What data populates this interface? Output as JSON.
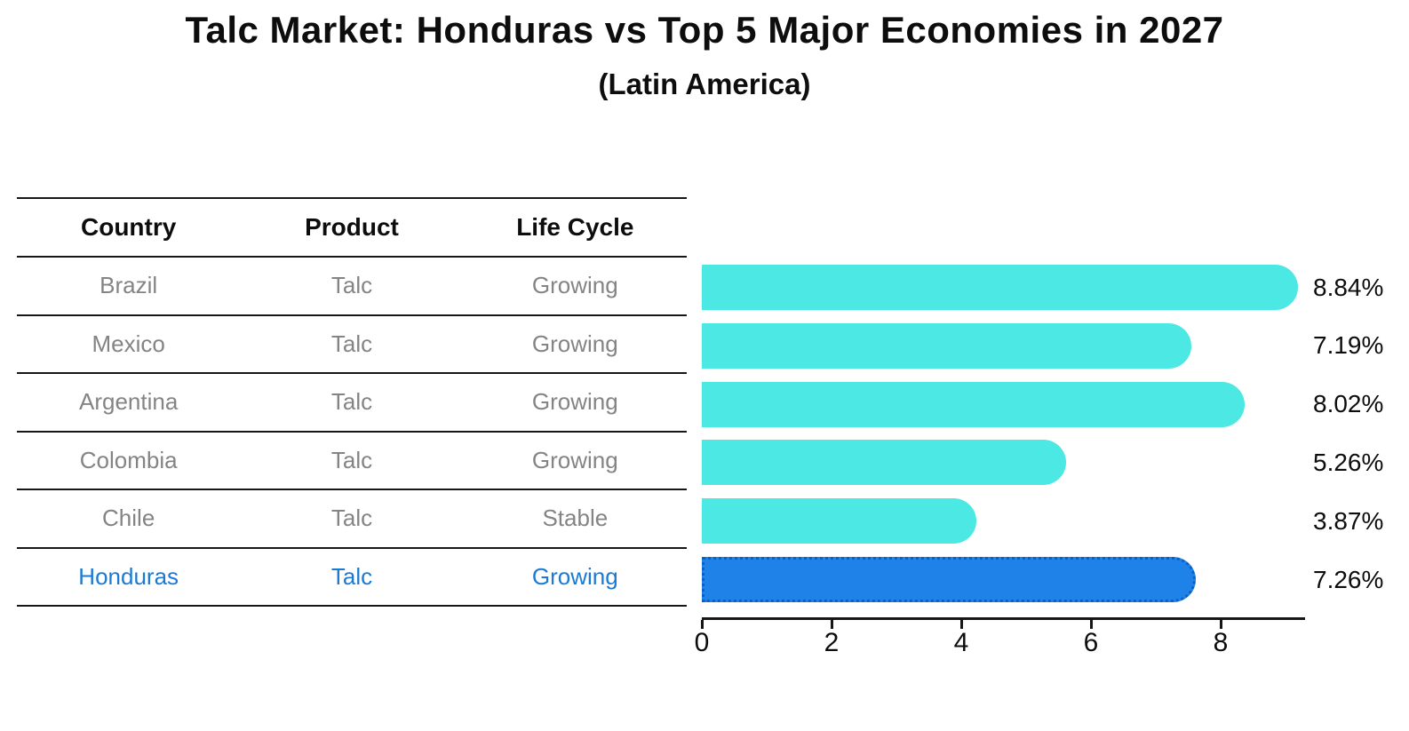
{
  "title": "Talc Market: Honduras vs Top 5 Major Economies in 2027",
  "subtitle": "(Latin America)",
  "table": {
    "headers": [
      "Country",
      "Product",
      "Life Cycle"
    ],
    "rows": [
      {
        "country": "Brazil",
        "product": "Talc",
        "life_cycle": "Growing",
        "highlight": false
      },
      {
        "country": "Mexico",
        "product": "Talc",
        "life_cycle": "Growing",
        "highlight": false
      },
      {
        "country": "Argentina",
        "product": "Talc",
        "life_cycle": "Growing",
        "highlight": false
      },
      {
        "country": "Colombia",
        "product": "Talc",
        "life_cycle": "Growing",
        "highlight": false
      },
      {
        "country": "Chile",
        "product": "Talc",
        "life_cycle": "Stable",
        "highlight": false
      },
      {
        "country": "Honduras",
        "product": "Talc",
        "life_cycle": "Growing",
        "highlight": true
      }
    ]
  },
  "chart_data": {
    "type": "bar",
    "orientation": "horizontal",
    "title": "Talc Market: Honduras vs Top 5 Major Economies in 2027",
    "subtitle": "(Latin America)",
    "categories": [
      "Brazil",
      "Mexico",
      "Argentina",
      "Colombia",
      "Chile",
      "Honduras"
    ],
    "values": [
      8.84,
      7.19,
      8.02,
      5.26,
      3.87,
      7.26
    ],
    "value_labels": [
      "8.84%",
      "7.19%",
      "8.02%",
      "5.26%",
      "3.87%",
      "7.26%"
    ],
    "highlight_index": 5,
    "xticks": [
      0,
      2,
      4,
      6,
      8
    ],
    "xlim": [
      0,
      9.3
    ],
    "grid": false,
    "legend": null,
    "xlabel": "",
    "ylabel": ""
  },
  "colors": {
    "bar_default": "#4be8e4",
    "bar_highlight": "#1e82e8",
    "bar_highlight_edge": "#0d5fc5",
    "highlight_text": "#1b7ad6",
    "row_text": "#848484",
    "header_text": "#0d0d0d",
    "axis": "#161616"
  }
}
